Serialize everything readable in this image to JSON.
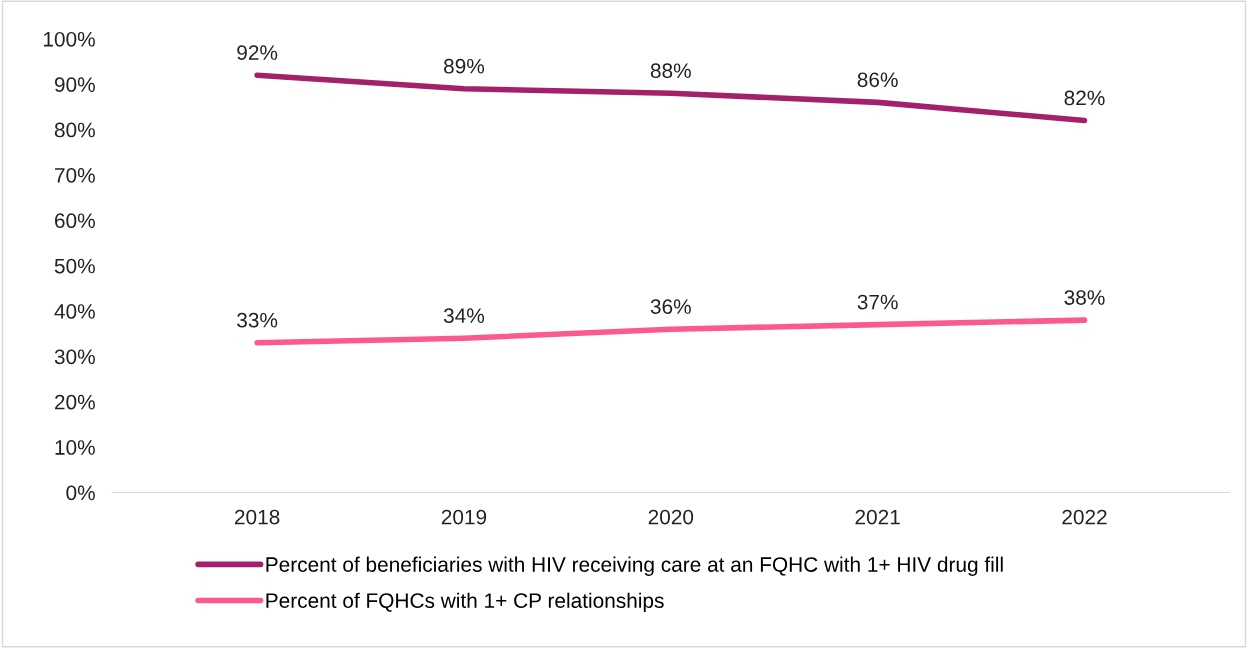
{
  "chart_data": {
    "type": "line",
    "categories": [
      "2018",
      "2019",
      "2020",
      "2021",
      "2022"
    ],
    "series": [
      {
        "name": "Percent of beneficiaries with HIV receiving care at an FQHC with 1+ HIV drug fill",
        "color": "#a3206b",
        "values": [
          92,
          89,
          88,
          86,
          82
        ],
        "value_labels": [
          "92%",
          "89%",
          "88%",
          "86%",
          "82%"
        ]
      },
      {
        "name": "Percent of FQHCs with 1+ CP relationships",
        "color": "#fc5a8d",
        "values": [
          33,
          34,
          36,
          37,
          38
        ],
        "value_labels": [
          "33%",
          "34%",
          "36%",
          "37%",
          "38%"
        ]
      }
    ],
    "ylim": [
      0,
      100
    ],
    "yticks": [
      {
        "value": 0,
        "label": "0%"
      },
      {
        "value": 10,
        "label": "10%"
      },
      {
        "value": 20,
        "label": "20%"
      },
      {
        "value": 30,
        "label": "30%"
      },
      {
        "value": 40,
        "label": "40%"
      },
      {
        "value": 50,
        "label": "50%"
      },
      {
        "value": 60,
        "label": "60%"
      },
      {
        "value": 70,
        "label": "70%"
      },
      {
        "value": 80,
        "label": "80%"
      },
      {
        "value": 90,
        "label": "90%"
      },
      {
        "value": 100,
        "label": "100%"
      }
    ],
    "grid": false,
    "legend": "bottom",
    "marker": "none",
    "line_style": "solid"
  }
}
